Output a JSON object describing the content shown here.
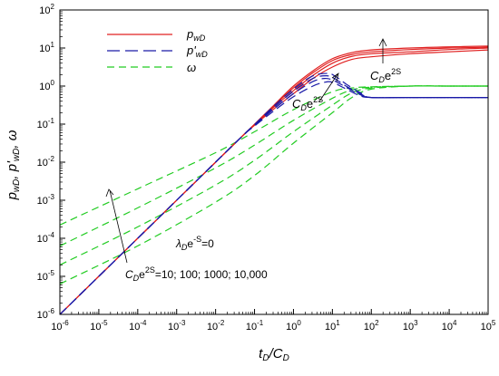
{
  "chart_data": {
    "type": "line",
    "xscale": "log",
    "yscale": "log",
    "xlim": [
      1e-06,
      100000.0
    ],
    "ylim": [
      1e-06,
      100
    ],
    "xlabel": {
      "main": "t",
      "sub1": "D",
      "sep": "/C",
      "sub2": "D"
    },
    "ylabel": {
      "p": "p",
      "wD": "wD",
      "sep1": ", p'",
      "wD2": "wD",
      "sep2": ", ω"
    },
    "x_ticks": [
      {
        "base": "10",
        "exp": "-6"
      },
      {
        "base": "10",
        "exp": "-5"
      },
      {
        "base": "10",
        "exp": "-4"
      },
      {
        "base": "10",
        "exp": "-3"
      },
      {
        "base": "10",
        "exp": "-2"
      },
      {
        "base": "10",
        "exp": "-1"
      },
      {
        "base": "10",
        "exp": "0"
      },
      {
        "base": "10",
        "exp": "1"
      },
      {
        "base": "10",
        "exp": "2"
      },
      {
        "base": "10",
        "exp": "3"
      },
      {
        "base": "10",
        "exp": "4"
      },
      {
        "base": "10",
        "exp": "5"
      }
    ],
    "y_ticks": [
      {
        "base": "10",
        "exp": "-6"
      },
      {
        "base": "10",
        "exp": "-5"
      },
      {
        "base": "10",
        "exp": "-4"
      },
      {
        "base": "10",
        "exp": "-3"
      },
      {
        "base": "10",
        "exp": "-2"
      },
      {
        "base": "10",
        "exp": "-1"
      },
      {
        "base": "10",
        "exp": "0"
      },
      {
        "base": "10",
        "exp": "1"
      },
      {
        "base": "10",
        "exp": "2"
      }
    ],
    "x_tick_values": [
      -6,
      -5,
      -4,
      -3,
      -2,
      -1,
      0,
      1,
      2,
      3,
      4,
      5
    ],
    "y_tick_values": [
      -6,
      -5,
      -4,
      -3,
      -2,
      -1,
      0,
      1,
      2
    ],
    "legend": [
      {
        "key": "pwD",
        "label_main": "p",
        "label_sub": "wD",
        "color": "#e02020",
        "style": "solid"
      },
      {
        "key": "dpwD",
        "label_main": "p'",
        "label_sub": "wD",
        "color": "#1a1aa8",
        "style": "dash"
      },
      {
        "key": "omega",
        "label_main": "ω",
        "label_sub": "",
        "color": "#22cc22",
        "style": "dash"
      }
    ],
    "annotations": {
      "cd_top": {
        "a": "C",
        "b": "D",
        "c": "e",
        "d": "2S"
      },
      "cd_mid": {
        "a": "C",
        "b": "D",
        "c": "e",
        "d": "2S"
      },
      "lambda": {
        "a": "λ",
        "b": "D",
        "c": "e",
        "d": "-S",
        "e": "=0"
      },
      "cd_list": {
        "a": "C",
        "b": "D",
        "c": "e",
        "d": "2S",
        "e": "=10; 100; 1000; 10,000"
      }
    },
    "parameters": {
      "CDe2S": [
        10,
        100,
        1000,
        10000
      ],
      "lambdaD_e_minus_S": 0
    },
    "series": [
      {
        "group": "pwD",
        "CDe2S": 10,
        "points": [
          [
            -6,
            -6
          ],
          [
            -3,
            -3
          ],
          [
            -1.4,
            -1.4
          ],
          [
            -1,
            -1.03
          ],
          [
            -0.5,
            -0.6
          ],
          [
            0,
            -0.2
          ],
          [
            0.5,
            0.2
          ],
          [
            1,
            0.5
          ],
          [
            1.5,
            0.7
          ],
          [
            2,
            0.77
          ],
          [
            3,
            0.85
          ],
          [
            4,
            0.9
          ],
          [
            5,
            0.95
          ]
        ]
      },
      {
        "group": "pwD",
        "CDe2S": 100,
        "points": [
          [
            -6,
            -6
          ],
          [
            -3,
            -3
          ],
          [
            -1.4,
            -1.4
          ],
          [
            -1,
            -1.02
          ],
          [
            -0.5,
            -0.55
          ],
          [
            0,
            -0.12
          ],
          [
            0.5,
            0.28
          ],
          [
            1,
            0.6
          ],
          [
            1.5,
            0.78
          ],
          [
            2,
            0.85
          ],
          [
            3,
            0.9
          ],
          [
            4,
            0.96
          ],
          [
            5,
            1.0
          ]
        ]
      },
      {
        "group": "pwD",
        "CDe2S": 1000,
        "points": [
          [
            -6,
            -6
          ],
          [
            -3,
            -3
          ],
          [
            -1.4,
            -1.4
          ],
          [
            -1,
            -1.01
          ],
          [
            -0.5,
            -0.52
          ],
          [
            0,
            -0.05
          ],
          [
            0.5,
            0.35
          ],
          [
            1,
            0.67
          ],
          [
            1.5,
            0.83
          ],
          [
            2,
            0.9
          ],
          [
            3,
            0.96
          ],
          [
            4,
            1.0
          ],
          [
            5,
            1.02
          ]
        ]
      },
      {
        "group": "pwD",
        "CDe2S": 10000,
        "points": [
          [
            -6,
            -6
          ],
          [
            -3,
            -3
          ],
          [
            -1.4,
            -1.4
          ],
          [
            -1,
            -1.0
          ],
          [
            -0.5,
            -0.5
          ],
          [
            0,
            0.0
          ],
          [
            0.5,
            0.4
          ],
          [
            1,
            0.72
          ],
          [
            1.5,
            0.88
          ],
          [
            2,
            0.95
          ],
          [
            3,
            1.0
          ],
          [
            4,
            1.03
          ],
          [
            5,
            1.05
          ]
        ]
      },
      {
        "group": "dpwD",
        "CDe2S": 10,
        "points": [
          [
            -6,
            -6
          ],
          [
            -3,
            -3
          ],
          [
            -1.4,
            -1.4
          ],
          [
            -1,
            -1.05
          ],
          [
            -0.5,
            -0.65
          ],
          [
            0,
            -0.28
          ],
          [
            0.5,
            0.0
          ],
          [
            0.8,
            0.1
          ],
          [
            1,
            0.1
          ],
          [
            1.3,
            -0.05
          ],
          [
            1.7,
            -0.25
          ],
          [
            2,
            -0.3
          ],
          [
            3,
            -0.3
          ],
          [
            5,
            -0.3
          ]
        ]
      },
      {
        "group": "dpwD",
        "CDe2S": 100,
        "points": [
          [
            -6,
            -6
          ],
          [
            -3,
            -3
          ],
          [
            -1.4,
            -1.4
          ],
          [
            -1,
            -1.03
          ],
          [
            -0.5,
            -0.6
          ],
          [
            0,
            -0.2
          ],
          [
            0.5,
            0.12
          ],
          [
            0.8,
            0.2
          ],
          [
            1,
            0.16
          ],
          [
            1.3,
            0.0
          ],
          [
            1.7,
            -0.22
          ],
          [
            2,
            -0.3
          ],
          [
            3,
            -0.3
          ],
          [
            5,
            -0.3
          ]
        ]
      },
      {
        "group": "dpwD",
        "CDe2S": 1000,
        "points": [
          [
            -6,
            -6
          ],
          [
            -3,
            -3
          ],
          [
            -1.4,
            -1.4
          ],
          [
            -1,
            -1.02
          ],
          [
            -0.5,
            -0.56
          ],
          [
            0,
            -0.14
          ],
          [
            0.5,
            0.2
          ],
          [
            0.85,
            0.27
          ],
          [
            1.05,
            0.2
          ],
          [
            1.35,
            0.0
          ],
          [
            1.75,
            -0.22
          ],
          [
            2,
            -0.3
          ],
          [
            3,
            -0.3
          ],
          [
            5,
            -0.3
          ]
        ]
      },
      {
        "group": "dpwD",
        "CDe2S": 10000,
        "points": [
          [
            -6,
            -6
          ],
          [
            -3,
            -3
          ],
          [
            -1.4,
            -1.4
          ],
          [
            -1,
            -1.01
          ],
          [
            -0.5,
            -0.52
          ],
          [
            0,
            -0.08
          ],
          [
            0.5,
            0.27
          ],
          [
            0.9,
            0.33
          ],
          [
            1.1,
            0.24
          ],
          [
            1.4,
            0.02
          ],
          [
            1.8,
            -0.22
          ],
          [
            2,
            -0.3
          ],
          [
            3,
            -0.3
          ],
          [
            5,
            -0.3
          ]
        ]
      },
      {
        "group": "omega",
        "CDe2S": 10,
        "points": [
          [
            -6,
            -3.65
          ],
          [
            -4,
            -2.7
          ],
          [
            -2,
            -1.75
          ],
          [
            -1,
            -1.2
          ],
          [
            0,
            -0.62
          ],
          [
            1,
            -0.15
          ],
          [
            1.5,
            -0.05
          ],
          [
            2,
            -0.02
          ],
          [
            3,
            0.0
          ],
          [
            4,
            0.0
          ],
          [
            5,
            0.0
          ]
        ]
      },
      {
        "group": "omega",
        "CDe2S": 100,
        "points": [
          [
            -6,
            -4.2
          ],
          [
            -4,
            -3.2
          ],
          [
            -2,
            -2.15
          ],
          [
            -1,
            -1.55
          ],
          [
            0,
            -0.9
          ],
          [
            1,
            -0.32
          ],
          [
            1.5,
            -0.1
          ],
          [
            2,
            -0.03
          ],
          [
            3,
            0.0
          ],
          [
            4,
            0.0
          ],
          [
            5,
            0.0
          ]
        ]
      },
      {
        "group": "omega",
        "CDe2S": 1000,
        "points": [
          [
            -6,
            -4.7
          ],
          [
            -4,
            -3.7
          ],
          [
            -2,
            -2.6
          ],
          [
            -1,
            -1.95
          ],
          [
            0,
            -1.2
          ],
          [
            1,
            -0.5
          ],
          [
            1.5,
            -0.18
          ],
          [
            2,
            -0.05
          ],
          [
            3,
            0.0
          ],
          [
            4,
            0.0
          ],
          [
            5,
            0.0
          ]
        ]
      },
      {
        "group": "omega",
        "CDe2S": 10000,
        "points": [
          [
            -6,
            -5.2
          ],
          [
            -4,
            -4.2
          ],
          [
            -2,
            -3.05
          ],
          [
            -1,
            -2.35
          ],
          [
            0,
            -1.5
          ],
          [
            1,
            -0.7
          ],
          [
            1.5,
            -0.3
          ],
          [
            2,
            -0.08
          ],
          [
            3,
            0.0
          ],
          [
            4,
            0.0
          ],
          [
            5,
            0.0
          ]
        ]
      }
    ]
  }
}
